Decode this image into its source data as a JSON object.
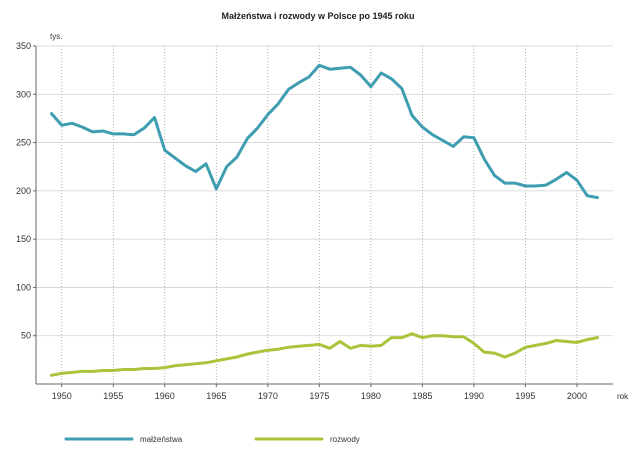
{
  "chart_data": {
    "type": "line",
    "title": "Małżeństwa i rozwody w Polsce po 1945 roku",
    "ylabel": "tys.",
    "xlabel": "rok",
    "ylim": [
      0,
      350
    ],
    "xlim": [
      1947.5,
      2003.5
    ],
    "yticks": [
      50,
      100,
      150,
      200,
      250,
      300,
      350
    ],
    "xticks": [
      1950,
      1955,
      1960,
      1965,
      1970,
      1975,
      1980,
      1985,
      1990,
      1995,
      2000
    ],
    "grid": "vertical-dotted",
    "legend": "bottom",
    "series": [
      {
        "name": "małżeństwa",
        "color": "#3e9db0",
        "x": [
          1949,
          1950,
          1951,
          1952,
          1953,
          1954,
          1955,
          1956,
          1957,
          1958,
          1959,
          1960,
          1961,
          1962,
          1963,
          1964,
          1965,
          1966,
          1967,
          1968,
          1969,
          1970,
          1971,
          1972,
          1973,
          1974,
          1975,
          1976,
          1977,
          1978,
          1979,
          1980,
          1981,
          1982,
          1983,
          1984,
          1985,
          1986,
          1987,
          1988,
          1989,
          1990,
          1991,
          1992,
          1993,
          1994,
          1995,
          1996,
          1997,
          1998,
          1999,
          2000,
          2001,
          2002
        ],
        "y": [
          280,
          268,
          270,
          266,
          261,
          262,
          259,
          259,
          258,
          265,
          276,
          242,
          234,
          226,
          220,
          228,
          202,
          225,
          235,
          254,
          265,
          279,
          290,
          305,
          312,
          318,
          330,
          326,
          327,
          328,
          320,
          308,
          322,
          316,
          306,
          278,
          266,
          258,
          252,
          246,
          256,
          255,
          233,
          216,
          208,
          208,
          205,
          205,
          206,
          212,
          219,
          211,
          195,
          193
        ]
      },
      {
        "name": "rozwody",
        "color": "#a8c43a",
        "x": [
          1949,
          1950,
          1951,
          1952,
          1953,
          1954,
          1955,
          1956,
          1957,
          1958,
          1959,
          1960,
          1961,
          1962,
          1963,
          1964,
          1965,
          1966,
          1967,
          1968,
          1969,
          1970,
          1971,
          1972,
          1973,
          1974,
          1975,
          1976,
          1977,
          1978,
          1979,
          1980,
          1981,
          1982,
          1983,
          1984,
          1985,
          1986,
          1987,
          1988,
          1989,
          1990,
          1991,
          1992,
          1993,
          1994,
          1995,
          1996,
          1997,
          1998,
          1999,
          2000,
          2001,
          2002
        ],
        "y": [
          9,
          11,
          12,
          13,
          13,
          14,
          14,
          15,
          15,
          16,
          16,
          17,
          19,
          20,
          21,
          22,
          24,
          26,
          28,
          31,
          33,
          35,
          36,
          38,
          39,
          40,
          41,
          37,
          44,
          37,
          40,
          39,
          40,
          48,
          48,
          52,
          48,
          50,
          50,
          49,
          49,
          42,
          33,
          32,
          28,
          32,
          38,
          40,
          42,
          45,
          44,
          43,
          46,
          48
        ]
      }
    ]
  }
}
